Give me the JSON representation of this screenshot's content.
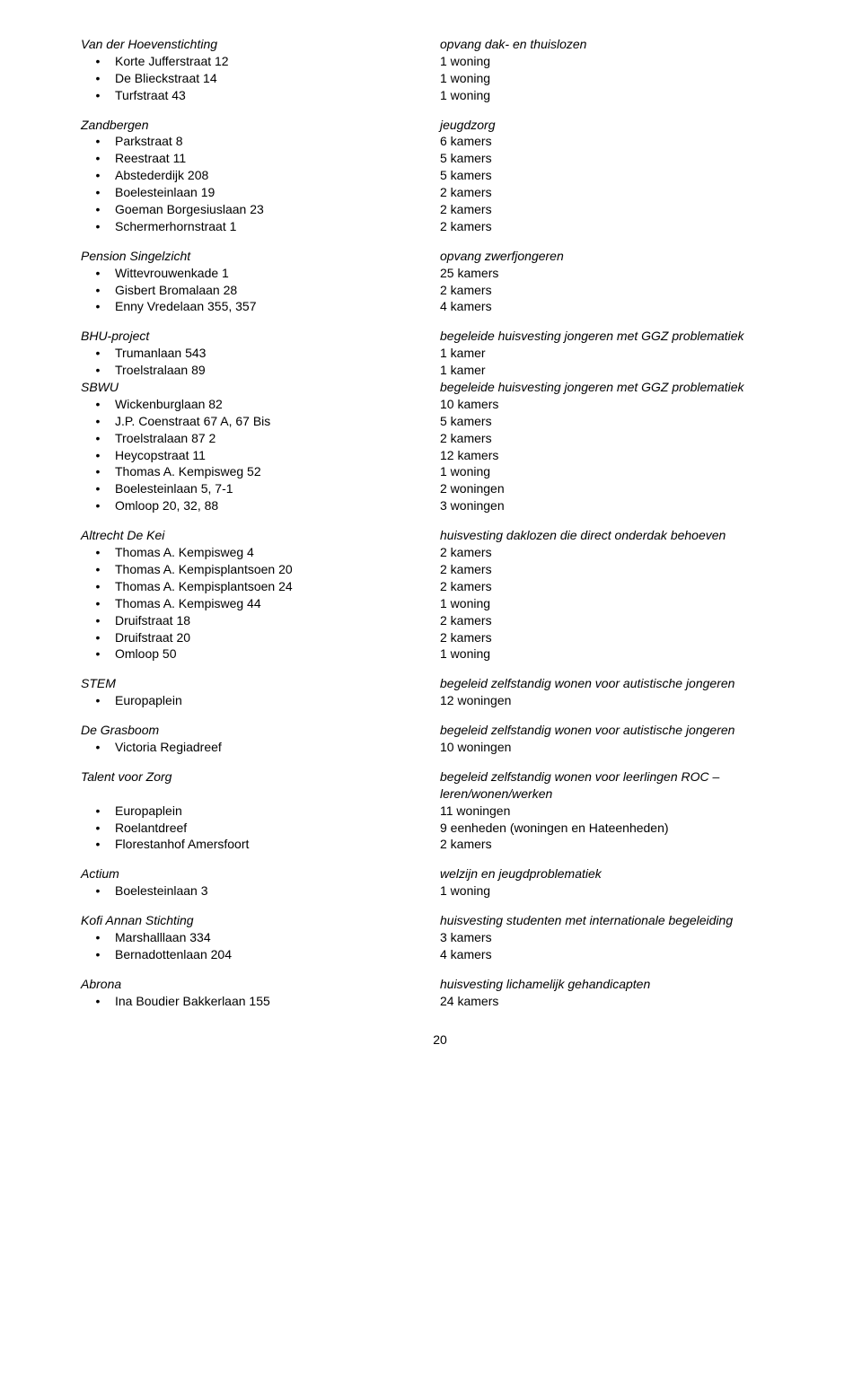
{
  "sections": [
    {
      "org": "Van der Hoevenstichting",
      "desc": "opvang dak- en thuislozen",
      "items": [
        {
          "l": "Korte Jufferstraat 12",
          "r": "1 woning"
        },
        {
          "l": "De Blieckstraat 14",
          "r": "1 woning"
        },
        {
          "l": "Turfstraat 43",
          "r": "1 woning"
        }
      ]
    },
    {
      "org": "Zandbergen",
      "desc": "jeugdzorg",
      "items": [
        {
          "l": "Parkstraat 8",
          "r": "6 kamers"
        },
        {
          "l": "Reestraat 11",
          "r": "5 kamers"
        },
        {
          "l": "Abstederdijk 208",
          "r": "5 kamers"
        },
        {
          "l": "Boelesteinlaan 19",
          "r": "2 kamers"
        },
        {
          "l": "Goeman Borgesiuslaan 23",
          "r": "2 kamers"
        },
        {
          "l": "Schermerhornstraat 1",
          "r": "2 kamers"
        }
      ]
    },
    {
      "org": "Pension Singelzicht",
      "desc": "opvang zwerfjongeren",
      "items": [
        {
          "l": "Wittevrouwenkade 1",
          "r": "25 kamers"
        },
        {
          "l": "Gisbert Bromalaan 28",
          "r": "2 kamers"
        },
        {
          "l": "Enny Vredelaan 355, 357",
          "r": "4 kamers"
        }
      ]
    },
    {
      "org": "BHU-project",
      "desc": "begeleide huisvesting jongeren met GGZ problematiek",
      "items": [
        {
          "l": "Trumanlaan 543",
          "r": "1 kamer"
        },
        {
          "l": "Troelstralaan 89",
          "r": "1 kamer"
        }
      ],
      "tight": true
    },
    {
      "org": "SBWU",
      "desc": "begeleide huisvesting jongeren met GGZ problematiek",
      "items": [
        {
          "l": "Wickenburglaan 82",
          "r": "10 kamers"
        },
        {
          "l": "J.P. Coenstraat 67 A, 67 Bis",
          "r": "5 kamers"
        },
        {
          "l": "Troelstralaan 87 2",
          "r": "2 kamers"
        },
        {
          "l": "Heycopstraat 11",
          "r": "12 kamers"
        },
        {
          "l": "Thomas A. Kempisweg 52",
          "r": "1 woning"
        },
        {
          "l": "Boelesteinlaan 5, 7-1",
          "r": "2 woningen"
        },
        {
          "l": "Omloop 20, 32, 88",
          "r": "3 woningen"
        }
      ]
    },
    {
      "org": "Altrecht De Kei",
      "desc": "huisvesting daklozen die direct onderdak behoeven",
      "items": [
        {
          "l": "Thomas A. Kempisweg 4",
          "r": "2 kamers"
        },
        {
          "l": "Thomas A. Kempisplantsoen 20",
          "r": "2 kamers"
        },
        {
          "l": "Thomas A. Kempisplantsoen 24",
          "r": "2 kamers"
        },
        {
          "l": "Thomas A. Kempisweg 44",
          "r": "1 woning"
        },
        {
          "l": "Druifstraat 18",
          "r": "2 kamers"
        },
        {
          "l": "Druifstraat 20",
          "r": "2 kamers"
        },
        {
          "l": "Omloop 50",
          "r": "1 woning"
        }
      ]
    },
    {
      "org": "STEM",
      "desc": "begeleid zelfstandig wonen voor autistische jongeren",
      "items": [
        {
          "l": "Europaplein",
          "r": "12 woningen"
        }
      ]
    },
    {
      "org": "De Grasboom",
      "desc": "begeleid zelfstandig wonen voor autistische jongeren",
      "items": [
        {
          "l": "Victoria Regiadreef",
          "r": "10 woningen"
        }
      ]
    },
    {
      "org": "Talent voor Zorg",
      "desc": "begeleid zelfstandig wonen voor leerlingen ROC – leren/wonen/werken",
      "desc_multiline": true,
      "items": [
        {
          "l": "Europaplein",
          "r": "11 woningen"
        },
        {
          "l": "Roelantdreef",
          "r": "9 eenheden (woningen en Hateenheden)"
        },
        {
          "l": "Florestanhof Amersfoort",
          "r": "2 kamers"
        }
      ]
    },
    {
      "org": "Actium",
      "desc": "welzijn en jeugdproblematiek",
      "items": [
        {
          "l": "Boelesteinlaan 3",
          "r": "1 woning"
        }
      ]
    },
    {
      "org": "Kofi Annan Stichting",
      "desc": "huisvesting studenten met internationale begeleiding",
      "items": [
        {
          "l": "Marshalllaan 334",
          "r": "3 kamers"
        },
        {
          "l": "Bernadottenlaan 204",
          "r": "4 kamers"
        }
      ]
    },
    {
      "org": "Abrona",
      "desc": "huisvesting lichamelijk gehandicapten",
      "items": [
        {
          "l": "Ina Boudier Bakkerlaan 155",
          "r": "24 kamers"
        }
      ]
    }
  ],
  "page_number": "20",
  "bullet_char": "•"
}
